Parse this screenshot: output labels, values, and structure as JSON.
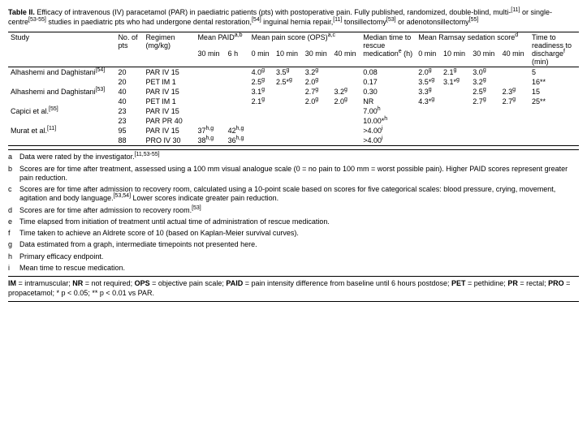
{
  "title_html": "<b>Table II.</b> Efficacy of intravenous (IV) paracetamol (PAR) in paediatric patients (pts) with postoperative pain. Fully published, randomized, double-blind, multi-<sup>[11]</sup> or single-centre<sup>[53-55]</sup> studies in paediatric pts who had undergone dental restoration,<sup>[54]</sup> inguinal hernia repair,<sup>[11]</sup> tonsillectomy<sup>[53]</sup> or adenotonsillectomy<sup>[55]</sup>",
  "headers": {
    "study": "Study",
    "no_pts": "No. of pts",
    "regimen": "Regimen (mg/kg)",
    "paid": "Mean PAID<sup>a,b</sup>",
    "paid_30": "30 min",
    "paid_6": "6 h",
    "ops": "Mean pain score (OPS)<sup>a,c</sup>",
    "ops_0": "0 min",
    "ops_10": "10 min",
    "ops_30": "30 min",
    "ops_40": "40 min",
    "rescue": "Median time to rescue medication<sup>e</sup> (h)",
    "ramsay": "Mean Ramsay sedation score<sup>d</sup>",
    "r_0": "0 min",
    "r_10": "10 min",
    "r_30": "30 min",
    "r_40": "40 min",
    "discharge": "Time to readiness to discharge<sup>f</sup> (min)"
  },
  "rows": [
    {
      "study": "Alhashemi and Daghistani<sup>[54]</sup>",
      "n": "20",
      "reg": "PAR IV 15",
      "p30": "",
      "p6": "",
      "o0": "4.0<sup>g</sup>",
      "o10": "3.5<sup>g</sup>",
      "o30": "3.2<sup>g</sup>",
      "o40": "",
      "res": "0.08",
      "ra0": "2.0<sup>g</sup>",
      "ra10": "2.1<sup>g</sup>",
      "ra30": "3.0<sup>g</sup>",
      "ra40": "",
      "dis": "5"
    },
    {
      "study": "",
      "n": "20",
      "reg": "PET IM 1",
      "p30": "",
      "p6": "",
      "o0": "2.5<sup>g</sup>",
      "o10": "2.5*<sup>g</sup>",
      "o30": "2.0<sup>g</sup>",
      "o40": "",
      "res": "0.17",
      "ra0": "3.5*<sup>g</sup>",
      "ra10": "3.1*<sup>g</sup>",
      "ra30": "3.2<sup>g</sup>",
      "ra40": "",
      "dis": "16**"
    },
    {
      "study": "Alhashemi and Daghistani<sup>[53]</sup>",
      "n": "40",
      "reg": "PAR IV 15",
      "p30": "",
      "p6": "",
      "o0": "3.1<sup>g</sup>",
      "o10": "",
      "o30": "2.7<sup>g</sup>",
      "o40": "3.2<sup>g</sup>",
      "res": "0.30",
      "ra0": "3.3<sup>g</sup>",
      "ra10": "",
      "ra30": "2.5<sup>g</sup>",
      "ra40": "2.3<sup>g</sup>",
      "dis": "15"
    },
    {
      "study": "",
      "n": "40",
      "reg": "PET IM 1",
      "p30": "",
      "p6": "",
      "o0": "2.1<sup>g</sup>",
      "o10": "",
      "o30": "2.0<sup>g</sup>",
      "o40": "2.0<sup>g</sup>",
      "res": "NR",
      "ra0": "4.3*<sup>g</sup>",
      "ra10": "",
      "ra30": "2.7<sup>g</sup>",
      "ra40": "2.7<sup>g</sup>",
      "dis": "25**"
    },
    {
      "study": "Capici et al.<sup>[55]</sup>",
      "n": "23",
      "reg": "PAR IV 15",
      "p30": "",
      "p6": "",
      "o0": "",
      "o10": "",
      "o30": "",
      "o40": "",
      "res": "7.00<sup>h</sup>",
      "ra0": "",
      "ra10": "",
      "ra30": "",
      "ra40": "",
      "dis": ""
    },
    {
      "study": "",
      "n": "23",
      "reg": "PAR PR 40",
      "p30": "",
      "p6": "",
      "o0": "",
      "o10": "",
      "o30": "",
      "o40": "",
      "res": "10.00*<sup>h</sup>",
      "ra0": "",
      "ra10": "",
      "ra30": "",
      "ra40": "",
      "dis": ""
    },
    {
      "study": "Murat et al.<sup>[11]</sup>",
      "n": "95",
      "reg": "PAR IV 15",
      "p30": "37<sup>h,g</sup>",
      "p6": "42<sup>h,g</sup>",
      "o0": "",
      "o10": "",
      "o30": "",
      "o40": "",
      "res": ">4.00<sup>i</sup>",
      "ra0": "",
      "ra10": "",
      "ra30": "",
      "ra40": "",
      "dis": ""
    },
    {
      "study": "",
      "n": "88",
      "reg": "PRO IV 30",
      "p30": "38<sup>h,g</sup>",
      "p6": "36<sup>h,g</sup>",
      "o0": "",
      "o10": "",
      "o30": "",
      "o40": "",
      "res": ">4.00<sup>i</sup>",
      "ra0": "",
      "ra10": "",
      "ra30": "",
      "ra40": "",
      "dis": ""
    }
  ],
  "footnotes": [
    {
      "k": "a",
      "t": "Data were rated by the investigator.<sup>[11,53-55]</sup>"
    },
    {
      "k": "b",
      "t": "Scores are for time after treatment, assessed using a 100 mm visual analogue scale (0 = no pain to 100 mm = worst possible pain). Higher PAID scores represent greater pain reduction."
    },
    {
      "k": "c",
      "t": "Scores are for time after admission to recovery room, calculated using a 10-point scale based on scores for five categorical scales: blood pressure, crying, movement, agitation and body language.<sup>[53,54]</sup> Lower scores indicate greater pain reduction."
    },
    {
      "k": "d",
      "t": "Scores are for time after admission to recovery room.<sup>[53]</sup>"
    },
    {
      "k": "e",
      "t": "Time elapsed from initiation of treatment until actual time of administration of rescue medication."
    },
    {
      "k": "f",
      "t": "Time taken to achieve an Aldrete score of 10 (based on Kaplan-Meier survival curves)."
    },
    {
      "k": "g",
      "t": "Data estimated from a graph, intermediate timepoints not presented here."
    },
    {
      "k": "h",
      "t": "Primary efficacy endpoint."
    },
    {
      "k": "i",
      "t": "Mean time to rescue medication."
    }
  ],
  "abbrev": "<b>IM</b> = intramuscular; <b>NR</b> = not required; <b>OPS</b> = objective pain scale; <b>PAID</b> = pain intensity difference from baseline until 6 hours postdose; <b>PET</b> = pethidine; <b>PR</b> = rectal; <b>PRO</b> = propacetamol; * p &lt; 0.05; ** p &lt; 0.01 vs PAR."
}
